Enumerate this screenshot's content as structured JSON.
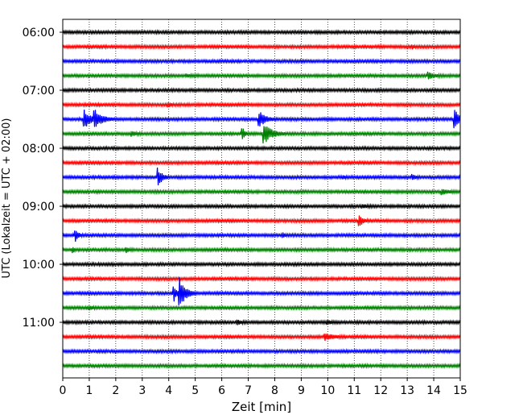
{
  "chart_data": {
    "type": "line",
    "subtype": "helicorder",
    "xlabel": "Zeit  [min]",
    "ylabel": "UTC (Lokalzeit = UTC + 02:00)",
    "xlim": [
      0,
      15
    ],
    "x_ticks": [
      "0",
      "1",
      "2",
      "3",
      "4",
      "5",
      "6",
      "7",
      "8",
      "9",
      "10",
      "11",
      "12",
      "13",
      "14",
      "15"
    ],
    "y_ticks": [
      "06:00",
      "07:00",
      "08:00",
      "09:00",
      "10:00",
      "11:00"
    ],
    "grid": "vertical dotted",
    "trace_colors": [
      "#000000",
      "#ff0000",
      "#0000ff",
      "#008000"
    ],
    "rows_per_hour": 4,
    "minutes_per_row": 15,
    "start_time": "06:00",
    "traces": [
      {
        "start": "06:00",
        "color": "#000000",
        "events": []
      },
      {
        "start": "06:15",
        "color": "#ff0000",
        "events": [
          {
            "t": 13.2,
            "amp": 1.0,
            "dur": 0.15
          }
        ]
      },
      {
        "start": "06:30",
        "color": "#0000ff",
        "events": []
      },
      {
        "start": "06:45",
        "color": "#008000",
        "events": [
          {
            "t": 4.7,
            "amp": 0.6,
            "dur": 0.3
          },
          {
            "t": 13.8,
            "amp": 1.7,
            "dur": 0.6
          }
        ]
      },
      {
        "start": "07:00",
        "color": "#000000",
        "events": []
      },
      {
        "start": "07:15",
        "color": "#ff0000",
        "events": [
          {
            "t": 4.0,
            "amp": 1.2,
            "dur": 0.2
          }
        ]
      },
      {
        "start": "07:30",
        "color": "#0000ff",
        "events": [
          {
            "t": 0.8,
            "amp": 5.5,
            "dur": 0.6
          },
          {
            "t": 1.2,
            "amp": 5.5,
            "dur": 0.7
          },
          {
            "t": 7.4,
            "amp": 4.8,
            "dur": 0.6
          },
          {
            "t": 14.8,
            "amp": 5.5,
            "dur": 0.4
          }
        ]
      },
      {
        "start": "07:45",
        "color": "#008000",
        "events": [
          {
            "t": 2.6,
            "amp": 1.2,
            "dur": 0.4
          },
          {
            "t": 6.8,
            "amp": 4.0,
            "dur": 0.2
          },
          {
            "t": 7.6,
            "amp": 5.5,
            "dur": 0.8
          }
        ]
      },
      {
        "start": "08:00",
        "color": "#000000",
        "events": []
      },
      {
        "start": "08:15",
        "color": "#ff0000",
        "events": []
      },
      {
        "start": "08:30",
        "color": "#0000ff",
        "events": [
          {
            "t": 3.6,
            "amp": 5.0,
            "dur": 0.4
          },
          {
            "t": 10.6,
            "amp": 0.8,
            "dur": 0.2
          },
          {
            "t": 13.2,
            "amp": 1.2,
            "dur": 0.3
          }
        ]
      },
      {
        "start": "08:45",
        "color": "#008000",
        "events": [
          {
            "t": 14.3,
            "amp": 1.5,
            "dur": 0.6
          }
        ]
      },
      {
        "start": "09:00",
        "color": "#000000",
        "events": [
          {
            "t": 11.3,
            "amp": 0.8,
            "dur": 0.5
          }
        ]
      },
      {
        "start": "09:15",
        "color": "#ff0000",
        "events": [
          {
            "t": 11.2,
            "amp": 3.8,
            "dur": 0.3
          }
        ]
      },
      {
        "start": "09:30",
        "color": "#0000ff",
        "events": [
          {
            "t": 0.5,
            "amp": 3.2,
            "dur": 0.25
          },
          {
            "t": 8.3,
            "amp": 1.2,
            "dur": 0.2
          }
        ]
      },
      {
        "start": "09:45",
        "color": "#008000",
        "events": [
          {
            "t": 0.4,
            "amp": 1.5,
            "dur": 0.1
          },
          {
            "t": 2.4,
            "amp": 1.2,
            "dur": 0.3
          }
        ]
      },
      {
        "start": "10:00",
        "color": "#000000",
        "events": []
      },
      {
        "start": "10:15",
        "color": "#ff0000",
        "events": []
      },
      {
        "start": "10:30",
        "color": "#0000ff",
        "events": [
          {
            "t": 4.2,
            "amp": 4.0,
            "dur": 0.3
          },
          {
            "t": 4.4,
            "amp": 9.0,
            "dur": 0.6
          }
        ]
      },
      {
        "start": "10:45",
        "color": "#008000",
        "events": [
          {
            "t": 1.0,
            "amp": 1.0,
            "dur": 0.3
          }
        ]
      },
      {
        "start": "11:00",
        "color": "#000000",
        "events": [
          {
            "t": 6.6,
            "amp": 1.0,
            "dur": 0.4
          },
          {
            "t": 10.0,
            "amp": 0.8,
            "dur": 0.4
          }
        ]
      },
      {
        "start": "11:15",
        "color": "#ff0000",
        "events": [
          {
            "t": 9.9,
            "amp": 1.8,
            "dur": 0.8
          }
        ]
      },
      {
        "start": "11:30",
        "color": "#0000ff",
        "events": []
      },
      {
        "start": "11:45",
        "color": "#008000",
        "events": []
      }
    ]
  }
}
